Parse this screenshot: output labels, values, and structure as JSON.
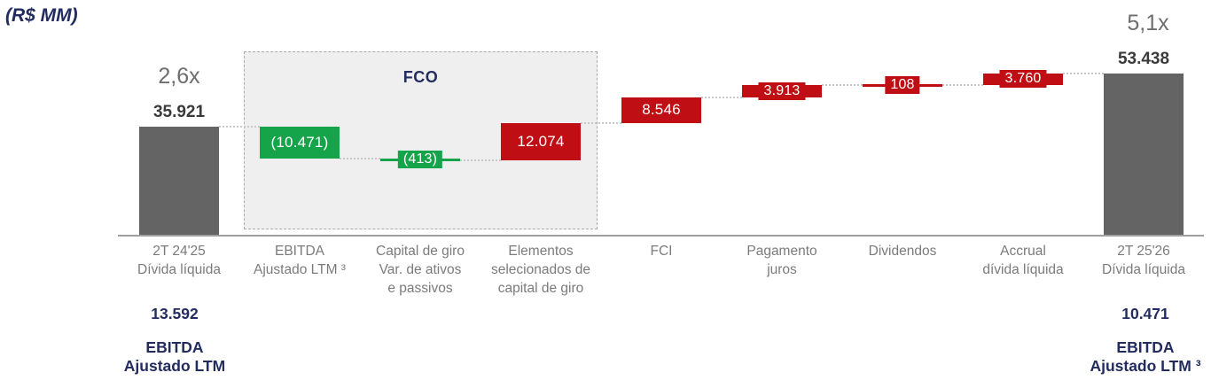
{
  "unit_label": "(R$ MM)",
  "fco_group": {
    "label": "FCO"
  },
  "annotations": {
    "left_ratio": "2,6x",
    "left_top_value": "35.921",
    "right_ratio": "5,1x",
    "right_top_value": "53.438",
    "left_bottom": {
      "value": "13.592",
      "lines": "EBITDA\nAjustado LTM"
    },
    "right_bottom": {
      "value": "10.471",
      "lines": "EBITDA\nAjustado LTM ³"
    }
  },
  "colors": {
    "navy": "#232c5f",
    "green": "#16a44b",
    "red": "#c00f14",
    "bar_gray": "#646464",
    "axis_text": "#7b7b7b",
    "ratio_text": "#6e6e6e",
    "value_text": "#3a3a3a",
    "baseline": "#9f9f9f",
    "connector": "#c9c9c9",
    "fco_bg": "#efefef",
    "fco_border": "#ababab"
  },
  "chart_data": {
    "type": "waterfall",
    "title": "",
    "unit": "R$ MM",
    "categories": [
      "2T 24'25\nDívida líquida",
      "EBITDA\nAjustado LTM ³",
      "Capital de giro\nVar. de ativos\ne passivos",
      "Elementos\nselecionados de\ncapital de giro",
      "FCI",
      "Pagamento\njuros",
      "Dividendos",
      "Accrual\ndívida líquida",
      "2T 25'26\nDívida líquida"
    ],
    "bars": [
      {
        "name": "2t-2425-divida-liquida",
        "kind": "total",
        "value": 35921,
        "value_display": "35.921",
        "color": "gray"
      },
      {
        "name": "ebitda-ajustado-ltm",
        "kind": "decrease",
        "value": 10471,
        "value_display": "(10.471)",
        "color": "green"
      },
      {
        "name": "capital-de-giro",
        "kind": "decrease",
        "value": 413,
        "value_display": "(413)",
        "color": "green"
      },
      {
        "name": "elementos-capital-giro",
        "kind": "increase",
        "value": 12074,
        "value_display": "12.074",
        "color": "red"
      },
      {
        "name": "fci",
        "kind": "increase",
        "value": 8546,
        "value_display": "8.546",
        "color": "red"
      },
      {
        "name": "pagamento-juros",
        "kind": "increase",
        "value": 3913,
        "value_display": "3.913",
        "color": "red"
      },
      {
        "name": "dividendos",
        "kind": "increase",
        "value": 108,
        "value_display": "108",
        "color": "red"
      },
      {
        "name": "accrual-divida-liquida",
        "kind": "increase",
        "value": 3760,
        "value_display": "3.760",
        "color": "red"
      },
      {
        "name": "2t-2526-divida-liquida",
        "kind": "total",
        "value": 53438,
        "value_display": "53.438",
        "color": "gray"
      }
    ],
    "leverage_ratios": {
      "start": "2,6x",
      "end": "5,1x"
    },
    "ebitda_ltm": {
      "start": "13.592",
      "end": "10.471"
    },
    "fco_group_members": [
      1,
      2,
      3
    ],
    "axis_range_note": "baseline 0 to 53438"
  }
}
